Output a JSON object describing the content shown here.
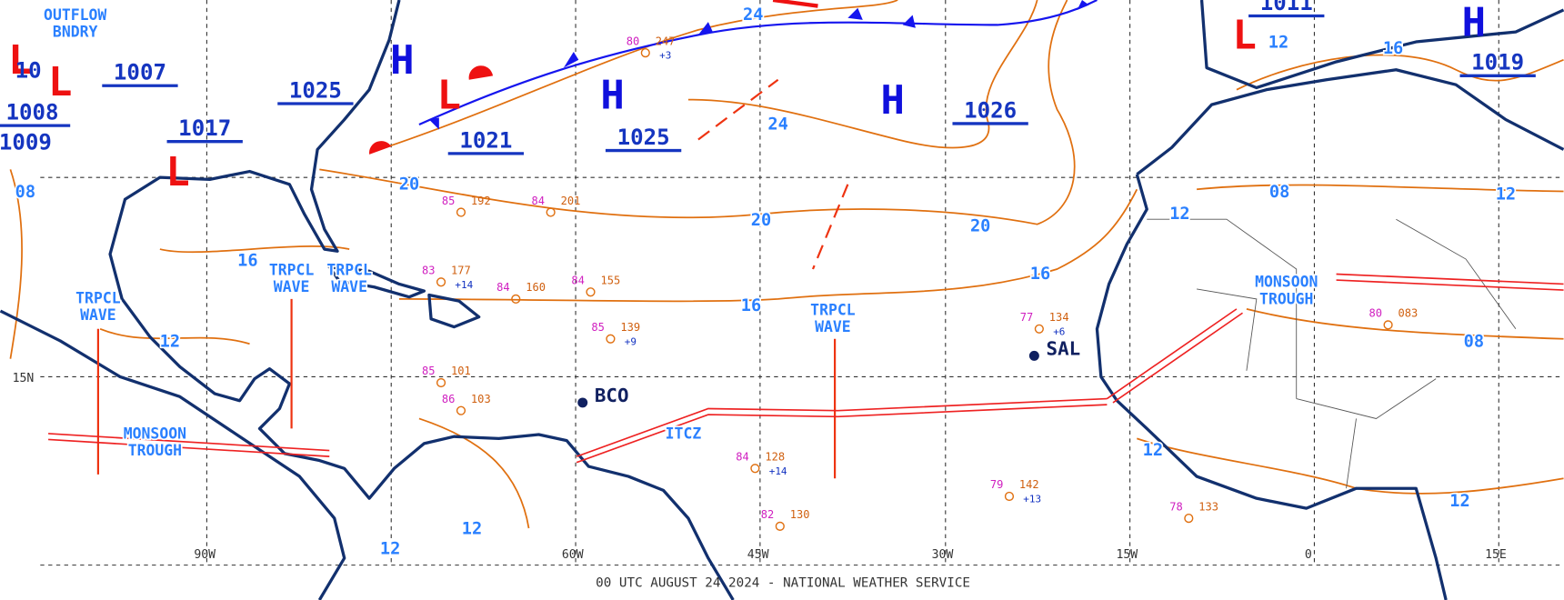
{
  "map": {
    "footer": "00 UTC AUGUST 24 2024 - NATIONAL WEATHER SERVICE",
    "longitude_labels": [
      "90W",
      "60W",
      "45W",
      "30W",
      "15W",
      "0",
      "15E"
    ],
    "latitude_labels": [
      "15N"
    ],
    "pressure_centers": [
      {
        "symbol": "H",
        "pressure": "1025"
      },
      {
        "symbol": "L",
        "pressure": "1021"
      },
      {
        "symbol": "H",
        "pressure": "1025"
      },
      {
        "symbol": "H",
        "pressure": "1026"
      },
      {
        "symbol": "H",
        "pressure": "1019"
      },
      {
        "symbol": "L",
        "pressure": "1011"
      },
      {
        "symbol": "L",
        "pressure": "1017"
      },
      {
        "symbol": "L",
        "pressure": "1007"
      },
      {
        "symbol": "L",
        "pressure": "1008"
      }
    ],
    "extra_pressure_labels": [
      "1009",
      "10"
    ],
    "isobar_labels": [
      "24",
      "24",
      "20",
      "20",
      "20",
      "16",
      "16",
      "16",
      "16",
      "12",
      "12",
      "12",
      "12",
      "12",
      "12",
      "12",
      "12",
      "08",
      "08",
      "08"
    ],
    "features": [
      "OUTFLOW BNDRY",
      "TRPCL WAVE",
      "TRPCL WAVE",
      "TRPCL WAVE",
      "TRPCL WAVE",
      "MONSOON TROUGH",
      "MONSOON TROUGH",
      "ITCZ"
    ],
    "stations": [
      "BCO",
      "SAL"
    ],
    "station_plots": [
      {
        "temp": "80",
        "pressure": "247",
        "tendency": "+3"
      },
      {
        "temp": "84",
        "pressure": "201"
      },
      {
        "temp": "85",
        "pressure": "192"
      },
      {
        "temp": "83",
        "pressure": "177",
        "tendency": "+14"
      },
      {
        "temp": "84",
        "pressure": "160"
      },
      {
        "temp": "84",
        "pressure": "155"
      },
      {
        "temp": "85",
        "pressure": "139",
        "tendency": "+9"
      },
      {
        "temp": "85",
        "pressure": "101"
      },
      {
        "temp": "86",
        "pressure": "103"
      },
      {
        "temp": "84",
        "pressure": "128",
        "tendency": "+14"
      },
      {
        "temp": "79",
        "pressure": "142",
        "tendency": "+13"
      },
      {
        "temp": "77",
        "pressure": "134",
        "tendency": "+6"
      },
      {
        "temp": "78",
        "pressure": "133"
      },
      {
        "temp": "80",
        "pressure": "083"
      },
      {
        "temp": "82",
        "pressure": "130"
      }
    ]
  }
}
